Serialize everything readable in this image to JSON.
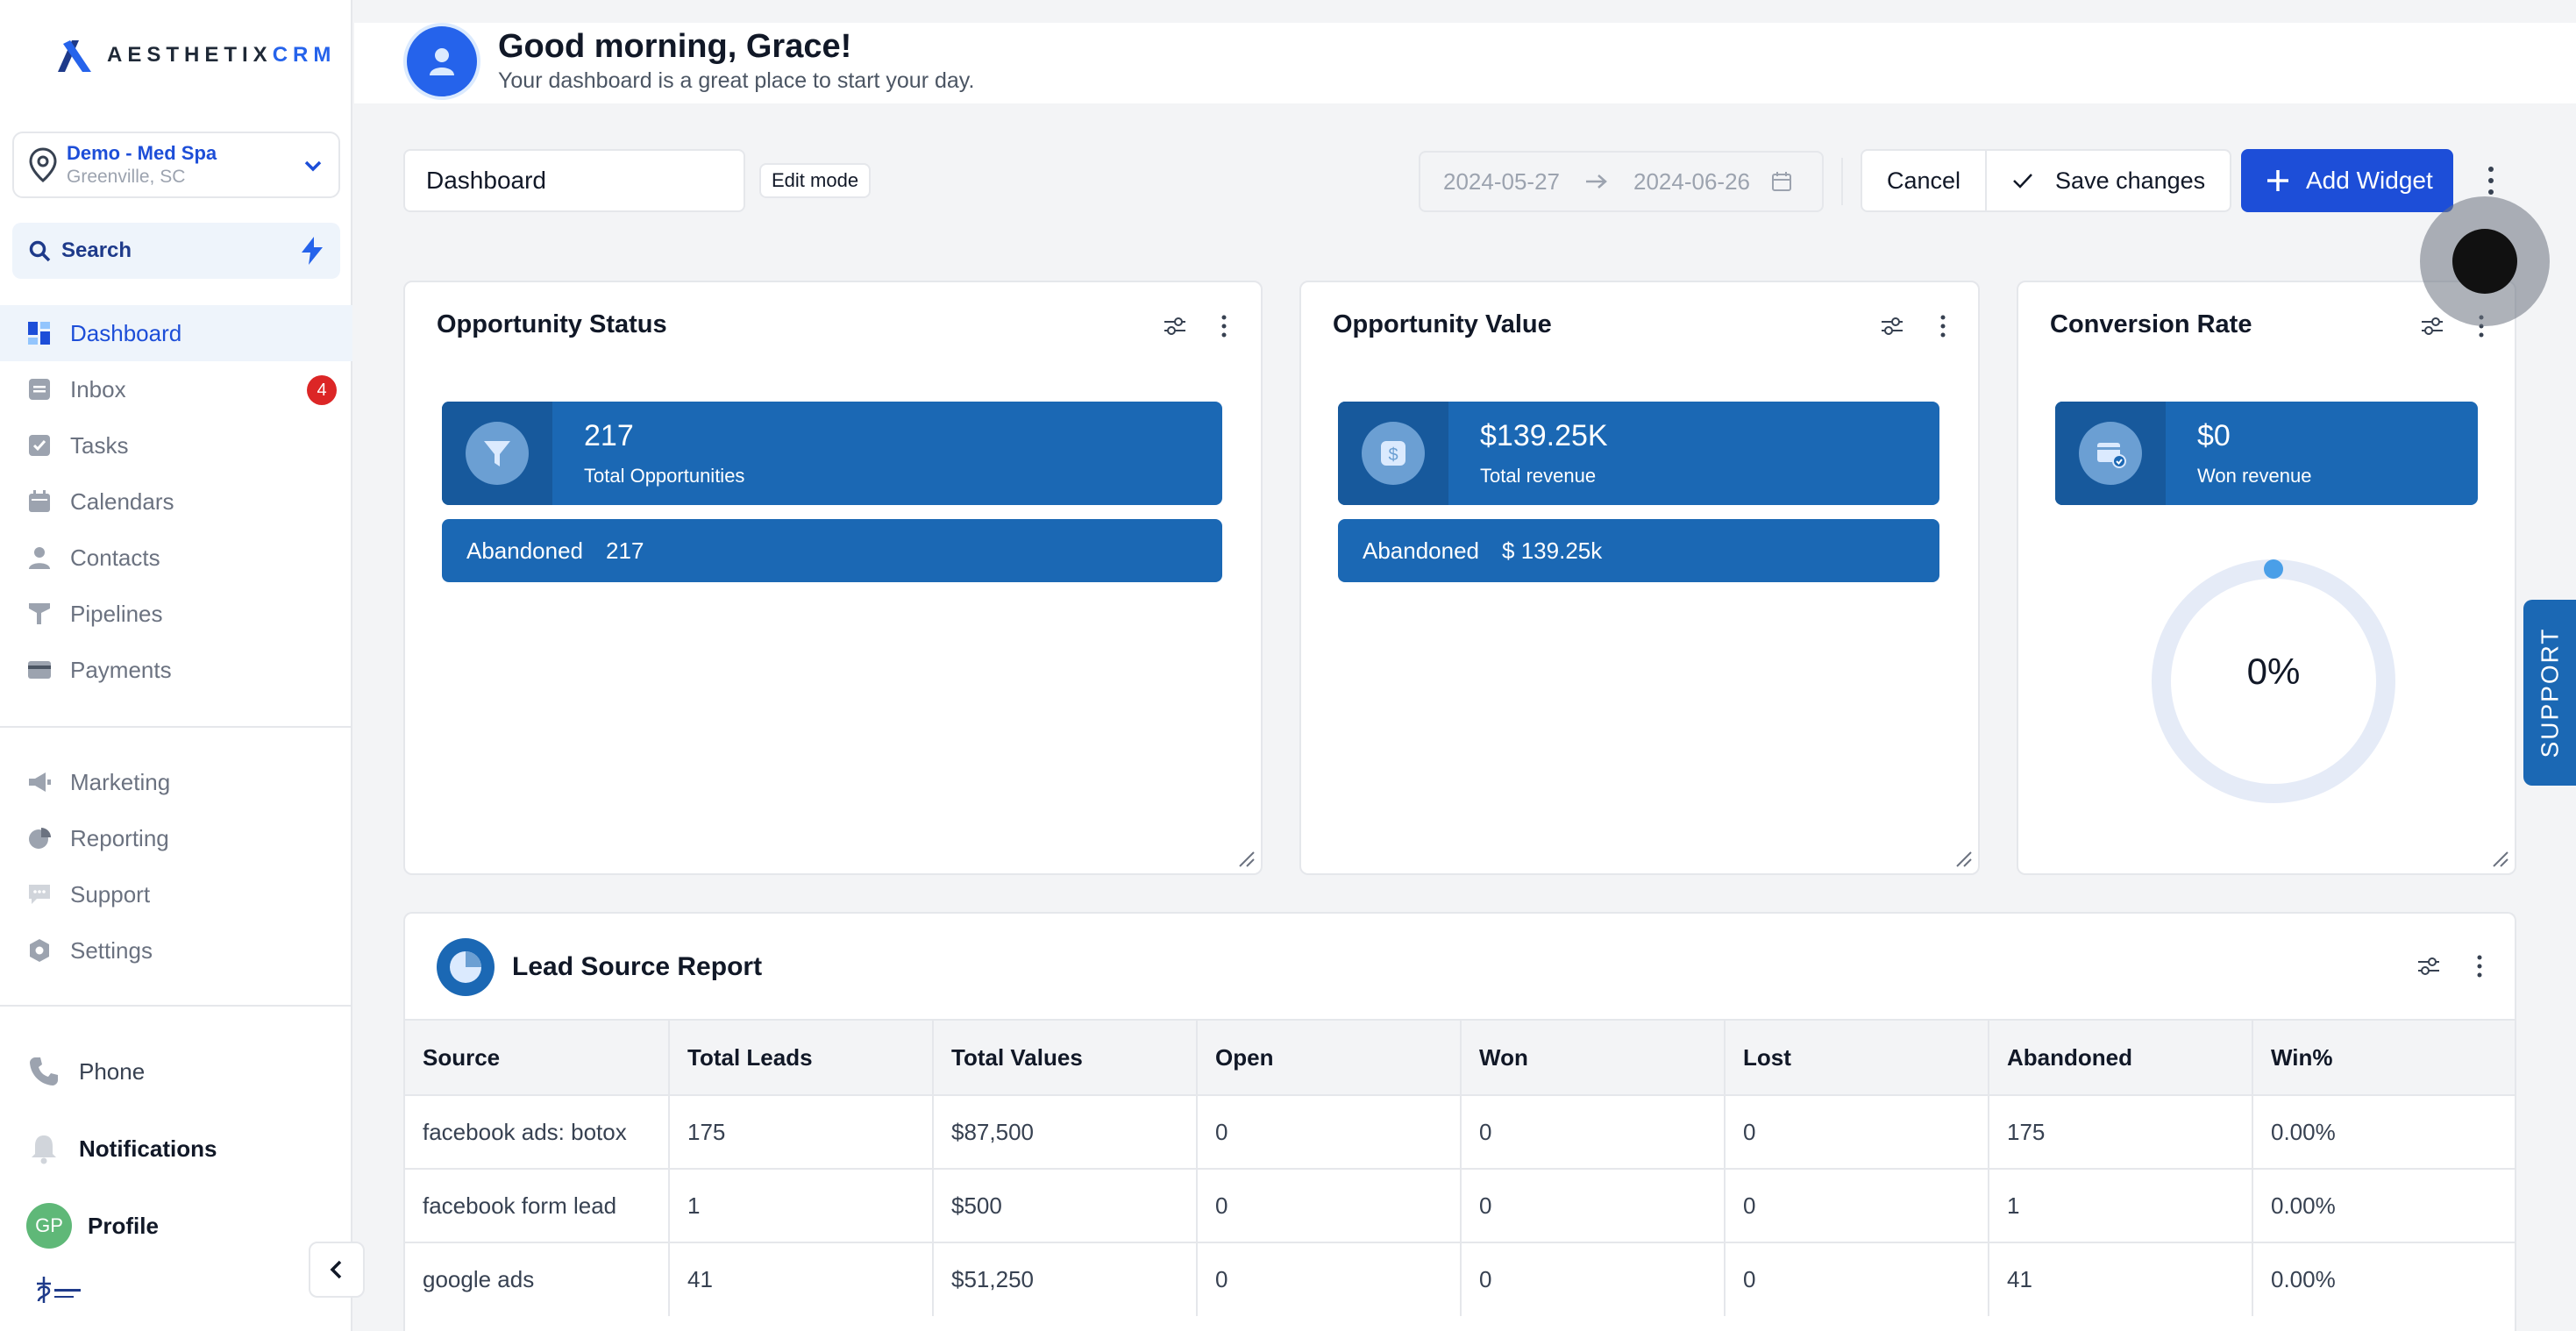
{
  "brand": {
    "name_part1": "AESTHETIX",
    "name_part2": "CRM"
  },
  "location": {
    "name": "Demo - Med Spa",
    "city": "Greenville, SC"
  },
  "search": {
    "label": "Search"
  },
  "nav": {
    "primary": [
      {
        "label": "Dashboard",
        "icon": "dashboard-icon",
        "active": true
      },
      {
        "label": "Inbox",
        "icon": "inbox-icon",
        "badge": "4"
      },
      {
        "label": "Tasks",
        "icon": "tasks-icon"
      },
      {
        "label": "Calendars",
        "icon": "calendar-icon"
      },
      {
        "label": "Contacts",
        "icon": "contacts-icon"
      },
      {
        "label": "Pipelines",
        "icon": "pipelines-icon"
      },
      {
        "label": "Payments",
        "icon": "payments-icon"
      }
    ],
    "secondary": [
      {
        "label": "Marketing",
        "icon": "megaphone-icon"
      },
      {
        "label": "Reporting",
        "icon": "pie-chart-icon"
      },
      {
        "label": "Support",
        "icon": "chat-icon"
      },
      {
        "label": "Settings",
        "icon": "gear-icon"
      }
    ],
    "bottom": {
      "phone": "Phone",
      "notifications": "Notifications",
      "profile": "Profile",
      "avatar_initials": "GP"
    }
  },
  "header": {
    "greeting": "Good morning, Grace!",
    "subtitle": "Your dashboard is a great place to start your day."
  },
  "toolbar": {
    "dashboard_name": "Dashboard",
    "edit_mode": "Edit mode",
    "date_from": "2024-05-27",
    "date_to": "2024-06-26",
    "cancel": "Cancel",
    "save": "Save changes",
    "add_widget": "Add Widget"
  },
  "widgets": {
    "opportunity_status": {
      "title": "Opportunity Status",
      "value": "217",
      "label": "Total Opportunities",
      "sub_label": "Abandoned",
      "sub_value": "217"
    },
    "opportunity_value": {
      "title": "Opportunity Value",
      "value": "$139.25K",
      "label": "Total revenue",
      "sub_label": "Abandoned",
      "sub_value": "$ 139.25k"
    },
    "conversion_rate": {
      "title": "Conversion Rate",
      "value": "$0",
      "label": "Won revenue",
      "percent_text": "0%",
      "percent": 0
    }
  },
  "support_tab": "SUPPORT",
  "lead_source": {
    "title": "Lead Source Report",
    "columns": [
      "Source",
      "Total Leads",
      "Total Values",
      "Open",
      "Won",
      "Lost",
      "Abandoned",
      "Win%"
    ],
    "rows": [
      [
        "facebook ads: botox",
        "175",
        "$87,500",
        "0",
        "0",
        "0",
        "175",
        "0.00%"
      ],
      [
        "facebook form lead",
        "1",
        "$500",
        "0",
        "0",
        "0",
        "1",
        "0.00%"
      ],
      [
        "google ads",
        "41",
        "$51,250",
        "0",
        "0",
        "0",
        "41",
        "0.00%"
      ]
    ]
  },
  "colors": {
    "accent": "#1d4ed8",
    "widget_blue": "#1b68b4",
    "badge_red": "#dc2626"
  }
}
